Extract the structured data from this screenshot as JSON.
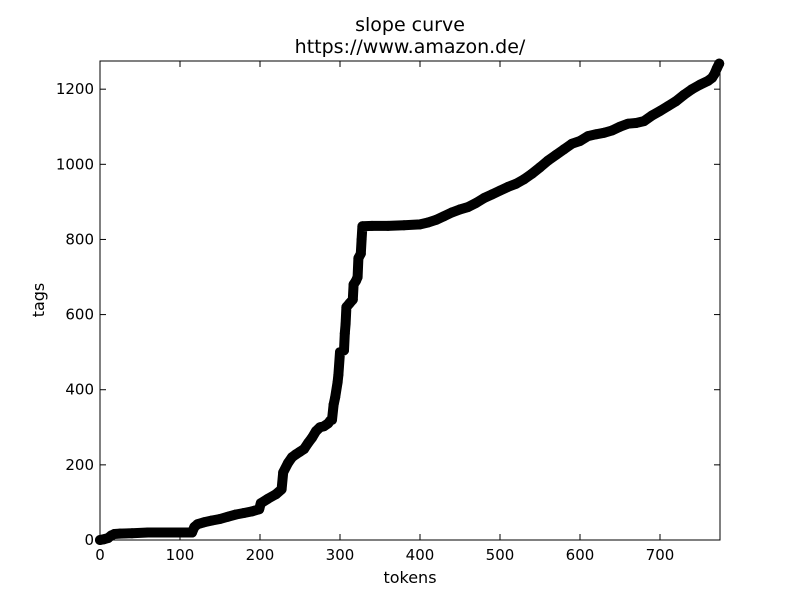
{
  "chart_data": {
    "type": "scatter",
    "title": "slope curve",
    "subtitle": "https://www.amazon.de/",
    "xlabel": "tokens",
    "ylabel": "tags",
    "xlim": [
      0,
      775
    ],
    "ylim": [
      0,
      1275
    ],
    "xticks": [
      0,
      100,
      200,
      300,
      400,
      500,
      600,
      700
    ],
    "yticks": [
      0,
      200,
      400,
      600,
      800,
      1000,
      1200
    ],
    "grid": false,
    "legend": "none",
    "marker_color": "#000000",
    "series": [
      {
        "points": [
          [
            0,
            0
          ],
          [
            5,
            2
          ],
          [
            10,
            5
          ],
          [
            14,
            12
          ],
          [
            18,
            16
          ],
          [
            25,
            17
          ],
          [
            40,
            18
          ],
          [
            60,
            20
          ],
          [
            80,
            20
          ],
          [
            100,
            20
          ],
          [
            115,
            20
          ],
          [
            118,
            35
          ],
          [
            122,
            42
          ],
          [
            130,
            47
          ],
          [
            140,
            52
          ],
          [
            150,
            56
          ],
          [
            160,
            62
          ],
          [
            170,
            68
          ],
          [
            180,
            72
          ],
          [
            190,
            76
          ],
          [
            199,
            82
          ],
          [
            201,
            98
          ],
          [
            210,
            110
          ],
          [
            220,
            122
          ],
          [
            227,
            135
          ],
          [
            229,
            180
          ],
          [
            235,
            205
          ],
          [
            240,
            220
          ],
          [
            245,
            228
          ],
          [
            250,
            235
          ],
          [
            255,
            242
          ],
          [
            260,
            258
          ],
          [
            265,
            272
          ],
          [
            270,
            290
          ],
          [
            275,
            300
          ],
          [
            280,
            303
          ],
          [
            285,
            310
          ],
          [
            288,
            318
          ],
          [
            290,
            320
          ],
          [
            292,
            360
          ],
          [
            294,
            380
          ],
          [
            297,
            420
          ],
          [
            298,
            440
          ],
          [
            300,
            500
          ],
          [
            305,
            505
          ],
          [
            306,
            550
          ],
          [
            307,
            575
          ],
          [
            308,
            620
          ],
          [
            312,
            630
          ],
          [
            316,
            640
          ],
          [
            317,
            680
          ],
          [
            320,
            690
          ],
          [
            322,
            700
          ],
          [
            323,
            750
          ],
          [
            326,
            762
          ],
          [
            327,
            800
          ],
          [
            328,
            835
          ],
          [
            340,
            836
          ],
          [
            360,
            836
          ],
          [
            380,
            838
          ],
          [
            400,
            840
          ],
          [
            410,
            845
          ],
          [
            420,
            852
          ],
          [
            430,
            862
          ],
          [
            440,
            872
          ],
          [
            450,
            880
          ],
          [
            460,
            886
          ],
          [
            470,
            897
          ],
          [
            480,
            910
          ],
          [
            490,
            920
          ],
          [
            500,
            930
          ],
          [
            510,
            940
          ],
          [
            520,
            948
          ],
          [
            530,
            960
          ],
          [
            540,
            975
          ],
          [
            550,
            992
          ],
          [
            560,
            1010
          ],
          [
            570,
            1025
          ],
          [
            580,
            1040
          ],
          [
            590,
            1055
          ],
          [
            600,
            1062
          ],
          [
            610,
            1075
          ],
          [
            620,
            1080
          ],
          [
            630,
            1084
          ],
          [
            640,
            1090
          ],
          [
            650,
            1100
          ],
          [
            660,
            1108
          ],
          [
            670,
            1110
          ],
          [
            680,
            1115
          ],
          [
            690,
            1130
          ],
          [
            700,
            1142
          ],
          [
            710,
            1155
          ],
          [
            720,
            1168
          ],
          [
            730,
            1185
          ],
          [
            740,
            1200
          ],
          [
            750,
            1212
          ],
          [
            760,
            1222
          ],
          [
            765,
            1230
          ],
          [
            768,
            1240
          ],
          [
            771,
            1255
          ],
          [
            774,
            1268
          ]
        ]
      }
    ]
  }
}
